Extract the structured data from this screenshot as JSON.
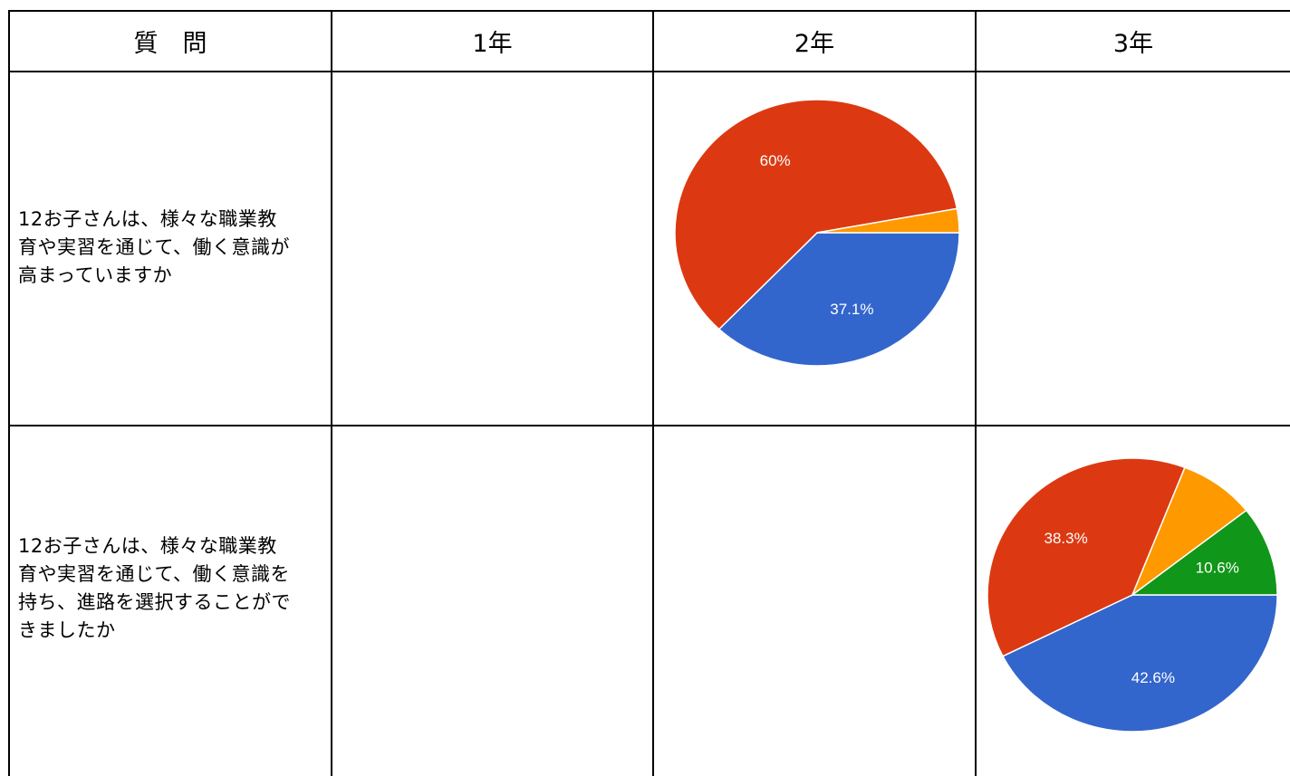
{
  "table": {
    "headers": [
      "質　問",
      "1年",
      "2年",
      "3年"
    ],
    "rows": [
      {
        "question_lines": [
          "12お子さんは、様々な職業教",
          "育や実習を通じて、働く意識が",
          "高まっていますか"
        ]
      },
      {
        "question_lines": [
          "12お子さんは、様々な職業教",
          "育や実習を通じて、働く意識を",
          "持ち、進路を選択することがで",
          "きましたか"
        ]
      }
    ]
  },
  "chart_data": [
    {
      "type": "pie",
      "row": 1,
      "column": "2年",
      "slices": [
        {
          "value": 37.1,
          "label": "37.1%",
          "color": "#3366cc"
        },
        {
          "value": 60.0,
          "label": "60%",
          "color": "#dc3912"
        },
        {
          "value": 2.9,
          "label": "",
          "color": "#ff9900"
        }
      ]
    },
    {
      "type": "pie",
      "row": 2,
      "column": "3年",
      "slices": [
        {
          "value": 42.6,
          "label": "42.6%",
          "color": "#3366cc"
        },
        {
          "value": 38.3,
          "label": "38.3%",
          "color": "#dc3912"
        },
        {
          "value": 8.5,
          "label": "",
          "color": "#ff9900"
        },
        {
          "value": 10.6,
          "label": "10.6%",
          "color": "#109618"
        }
      ]
    }
  ]
}
